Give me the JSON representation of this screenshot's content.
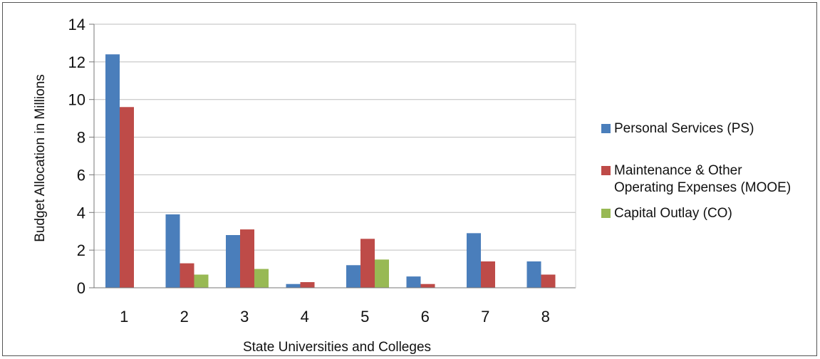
{
  "chart_data": {
    "type": "bar",
    "categories": [
      "1",
      "2",
      "3",
      "4",
      "5",
      "6",
      "7",
      "8"
    ],
    "series": [
      {
        "name": "Personal Services (PS)",
        "color": "#4a7ebb",
        "values": [
          12.4,
          3.9,
          2.8,
          0.2,
          1.2,
          0.6,
          2.9,
          1.4
        ]
      },
      {
        "name": "Maintenance & Other Operating Expenses (MOOE)",
        "name_lines": [
          "Maintenance & Other",
          "Operating Expenses (MOOE)"
        ],
        "color": "#be4b48",
        "values": [
          9.6,
          1.3,
          3.1,
          0.3,
          2.6,
          0.2,
          1.4,
          0.7
        ]
      },
      {
        "name": "Capital Outlay (CO)",
        "color": "#98b954",
        "values": [
          0,
          0.7,
          1.0,
          0,
          1.5,
          0,
          0,
          0
        ]
      }
    ],
    "y_ticks": [
      "0",
      "2",
      "4",
      "6",
      "8",
      "10",
      "12",
      "14"
    ],
    "ylim": [
      0,
      14
    ],
    "xlabel": "State Universities and Colleges",
    "ylabel": "Budget Allocation in Millions",
    "grid": true,
    "legend_position": "right"
  }
}
